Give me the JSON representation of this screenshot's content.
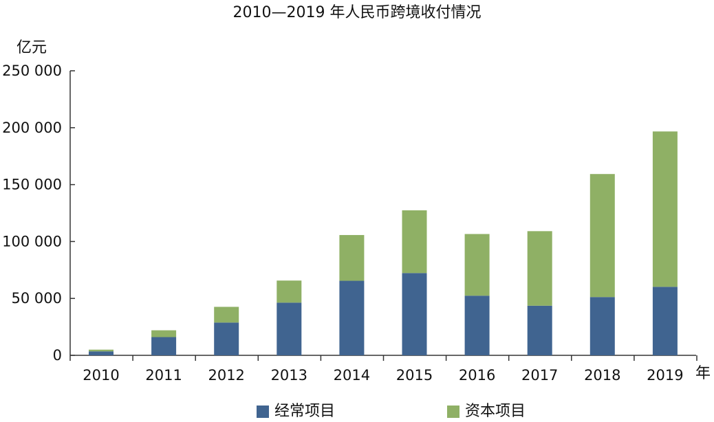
{
  "chart_data": {
    "type": "bar",
    "stacked": true,
    "title": "2010—2019 年人民币跨境收付情况",
    "y_unit": "亿元",
    "x_unit": "年",
    "categories": [
      "2010",
      "2011",
      "2012",
      "2013",
      "2014",
      "2015",
      "2016",
      "2017",
      "2018",
      "2019"
    ],
    "ylim": [
      0,
      250000
    ],
    "y_ticks": [
      0,
      50000,
      100000,
      150000,
      200000,
      250000
    ],
    "y_tick_labels": [
      "0",
      "50 000",
      "100 000",
      "150 000",
      "200 000",
      "250 000"
    ],
    "series": [
      {
        "name": "经常项目",
        "color": "#406490",
        "values": [
          3500,
          16000,
          28800,
          46300,
          65500,
          72300,
          52400,
          43600,
          51200,
          60200
        ]
      },
      {
        "name": "资本项目",
        "color": "#8fb065",
        "values": [
          1500,
          6000,
          13800,
          19400,
          40200,
          55100,
          54200,
          65500,
          108100,
          136500
        ]
      }
    ],
    "grid": false,
    "legend_position": "bottom"
  }
}
